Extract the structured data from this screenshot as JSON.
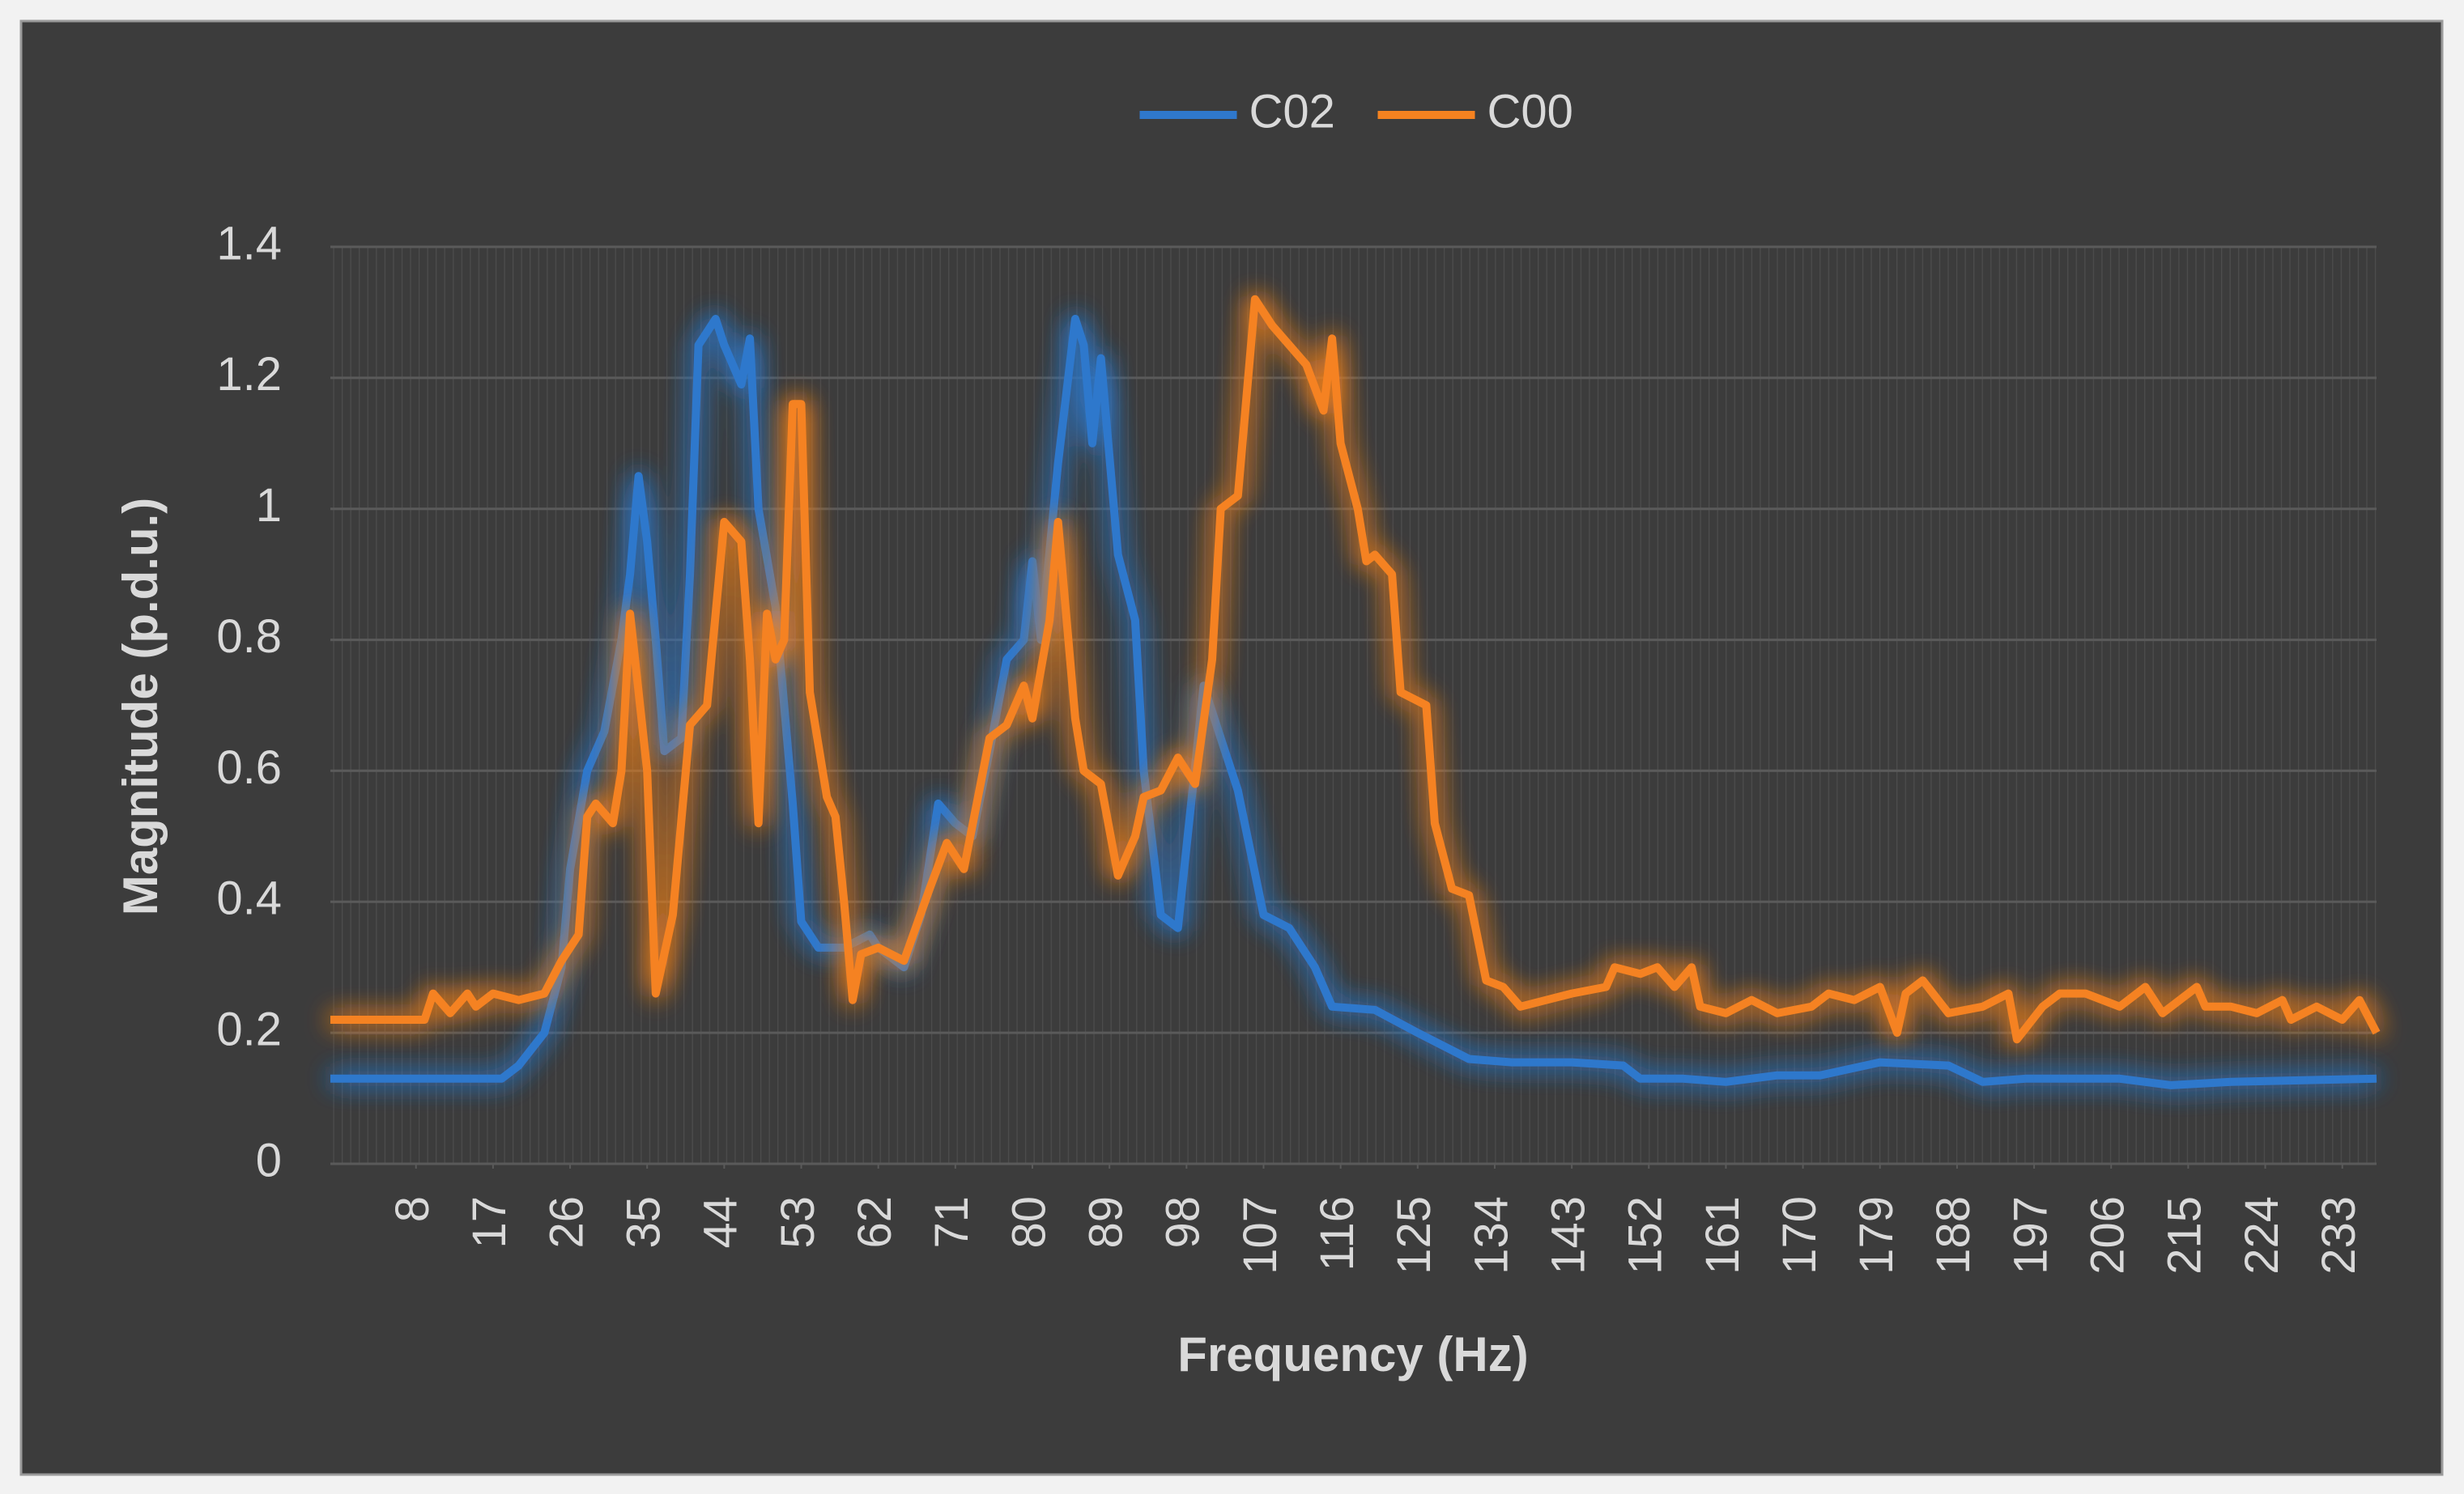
{
  "chart_data": {
    "type": "line",
    "xlabel": "Frequency (Hz)",
    "ylabel": "Magnitude (p.d.u.)",
    "xlim": [
      -2,
      237
    ],
    "xticks": [
      8,
      17,
      26,
      35,
      44,
      53,
      62,
      71,
      80,
      89,
      98,
      107,
      116,
      125,
      134,
      143,
      152,
      161,
      170,
      179,
      188,
      197,
      206,
      215,
      224,
      233
    ],
    "ylim": [
      0,
      1.4
    ],
    "yticks": [
      0,
      0.2,
      0.4,
      0.6,
      0.8,
      1,
      1.2,
      1.4
    ],
    "grid": true,
    "legend": "top",
    "series": [
      {
        "name": "C02",
        "color": "#2f78cc",
        "x": [
          -2,
          18,
          20,
          23,
          25,
          26,
          28,
          30,
          32,
          33,
          34,
          35,
          36,
          37,
          39,
          40,
          41,
          43,
          44,
          46,
          47,
          48,
          50,
          52,
          53,
          55,
          57,
          58,
          61,
          62,
          65,
          67,
          69,
          71,
          73,
          75,
          77,
          79,
          80,
          81,
          83,
          85,
          86,
          87,
          88,
          90,
          92,
          93,
          95,
          97,
          100,
          102,
          104,
          107,
          110,
          113,
          115,
          120,
          125,
          128,
          131,
          136,
          143,
          149,
          151,
          156,
          161,
          167,
          172,
          179,
          187,
          191,
          196,
          207,
          213,
          220,
          237
        ],
        "values": [
          0.13,
          0.13,
          0.15,
          0.2,
          0.3,
          0.45,
          0.6,
          0.66,
          0.8,
          0.9,
          1.05,
          0.95,
          0.8,
          0.63,
          0.65,
          0.9,
          1.25,
          1.29,
          1.25,
          1.19,
          1.26,
          1.0,
          0.85,
          0.55,
          0.37,
          0.33,
          0.33,
          0.33,
          0.35,
          0.33,
          0.3,
          0.38,
          0.55,
          0.52,
          0.5,
          0.63,
          0.77,
          0.8,
          0.92,
          0.8,
          1.07,
          1.29,
          1.25,
          1.1,
          1.23,
          0.93,
          0.83,
          0.6,
          0.38,
          0.36,
          0.73,
          0.65,
          0.57,
          0.38,
          0.36,
          0.3,
          0.24,
          0.235,
          0.2,
          0.18,
          0.16,
          0.155,
          0.155,
          0.15,
          0.13,
          0.13,
          0.125,
          0.135,
          0.135,
          0.155,
          0.15,
          0.125,
          0.13,
          0.13,
          0.12,
          0.125,
          0.13
        ]
      },
      {
        "name": "C00",
        "color": "#f58220",
        "x": [
          -2,
          9,
          10,
          12,
          14,
          15,
          17,
          20,
          23,
          25,
          27,
          28,
          29,
          31,
          32,
          33,
          35,
          36,
          38,
          40,
          42,
          44,
          46,
          47,
          48,
          49,
          50,
          51,
          52,
          53,
          54,
          56,
          57,
          58,
          59,
          60,
          62,
          65,
          68,
          70,
          72,
          75,
          77,
          79,
          80,
          82,
          83,
          85,
          86,
          88,
          90,
          92,
          93,
          95,
          97,
          99,
          101,
          102,
          104,
          106,
          108,
          110,
          112,
          114,
          115,
          116,
          118,
          119,
          120,
          122,
          123,
          126,
          127,
          129,
          131,
          133,
          135,
          137,
          140,
          143,
          147,
          148,
          151,
          153,
          155,
          157,
          158,
          161,
          164,
          167,
          171,
          173,
          176,
          179,
          181,
          182,
          184,
          187,
          191,
          194,
          195,
          198,
          200,
          203,
          207,
          210,
          212,
          216,
          217,
          220,
          223,
          226,
          227,
          230,
          233,
          235,
          237
        ],
        "values": [
          0.22,
          0.22,
          0.26,
          0.23,
          0.26,
          0.24,
          0.26,
          0.25,
          0.26,
          0.31,
          0.35,
          0.53,
          0.55,
          0.52,
          0.6,
          0.84,
          0.6,
          0.26,
          0.38,
          0.67,
          0.7,
          0.98,
          0.95,
          0.77,
          0.52,
          0.84,
          0.77,
          0.8,
          1.16,
          1.16,
          0.72,
          0.56,
          0.53,
          0.4,
          0.25,
          0.32,
          0.33,
          0.31,
          0.42,
          0.49,
          0.45,
          0.65,
          0.67,
          0.73,
          0.68,
          0.83,
          0.98,
          0.68,
          0.6,
          0.58,
          0.44,
          0.5,
          0.56,
          0.57,
          0.62,
          0.58,
          0.77,
          1.0,
          1.02,
          1.32,
          1.28,
          1.25,
          1.22,
          1.15,
          1.26,
          1.1,
          1.0,
          0.92,
          0.93,
          0.9,
          0.72,
          0.7,
          0.52,
          0.42,
          0.41,
          0.28,
          0.27,
          0.24,
          0.25,
          0.26,
          0.27,
          0.3,
          0.29,
          0.3,
          0.27,
          0.3,
          0.24,
          0.23,
          0.25,
          0.23,
          0.24,
          0.26,
          0.25,
          0.27,
          0.2,
          0.26,
          0.28,
          0.23,
          0.24,
          0.26,
          0.19,
          0.24,
          0.26,
          0.26,
          0.24,
          0.27,
          0.23,
          0.27,
          0.24,
          0.24,
          0.23,
          0.25,
          0.22,
          0.24,
          0.22,
          0.25,
          0.2
        ]
      }
    ]
  }
}
